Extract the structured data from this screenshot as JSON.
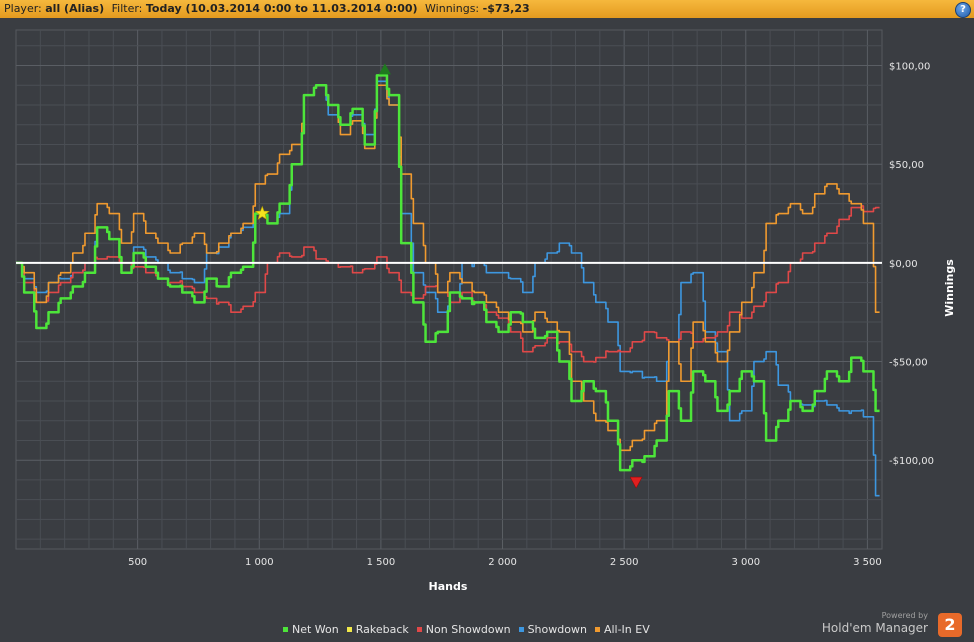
{
  "header": {
    "player_label": "Player:",
    "player_value": "all (Alias)",
    "filter_label": "Filter:",
    "filter_value": "Today (10.03.2014 0:00 to 11.03.2014 0:00)",
    "winnings_label": "Winnings:",
    "winnings_value": "-$73,23",
    "help_glyph": "?"
  },
  "branding": {
    "powered_by": "Powered by",
    "product": "Hold'em Manager",
    "logo_text": "2"
  },
  "chart_data": {
    "type": "line",
    "xlabel": "Hands",
    "ylabel": "Winnings",
    "xlim": [
      0,
      3560
    ],
    "ylim": [
      -145,
      118
    ],
    "x_ticks": [
      500,
      1000,
      1500,
      2000,
      2500,
      3000,
      3500
    ],
    "x_tick_labels": [
      "500",
      "1 000",
      "1 500",
      "2 000",
      "2 500",
      "3 000",
      "3 500"
    ],
    "y_ticks": [
      100,
      50,
      0,
      -50,
      -100
    ],
    "y_tick_labels": [
      "$100,00",
      "$50,00",
      "$0,00",
      "-$50,00",
      "-$100,00"
    ],
    "grid": true,
    "legend_position": "bottom",
    "zero_line_color": "#ffffff",
    "x": [
      0,
      50,
      100,
      150,
      200,
      250,
      300,
      350,
      400,
      450,
      500,
      550,
      600,
      650,
      700,
      750,
      800,
      850,
      900,
      950,
      1000,
      1050,
      1100,
      1150,
      1200,
      1250,
      1300,
      1350,
      1400,
      1450,
      1500,
      1550,
      1600,
      1650,
      1700,
      1750,
      1800,
      1850,
      1900,
      1950,
      2000,
      2050,
      2100,
      2150,
      2200,
      2250,
      2300,
      2350,
      2400,
      2450,
      2500,
      2550,
      2600,
      2650,
      2700,
      2750,
      2800,
      2850,
      2900,
      2950,
      3000,
      3050,
      3100,
      3150,
      3200,
      3250,
      3300,
      3350,
      3400,
      3450,
      3500,
      3550
    ],
    "series": [
      {
        "name": "Net Won",
        "color": "#4de53a",
        "values": [
          0,
          -15,
          -33,
          -25,
          -18,
          -12,
          -5,
          18,
          12,
          -5,
          5,
          -2,
          -8,
          -12,
          -15,
          -20,
          -8,
          -12,
          -5,
          -2,
          25,
          20,
          30,
          50,
          85,
          90,
          80,
          70,
          78,
          60,
          95,
          85,
          10,
          -20,
          -40,
          -35,
          -15,
          -18,
          -20,
          -30,
          -35,
          -25,
          -30,
          -38,
          -35,
          -50,
          -70,
          -60,
          -65,
          -80,
          -105,
          -100,
          -98,
          -90,
          -65,
          -80,
          -55,
          -60,
          -75,
          -65,
          -55,
          -60,
          -90,
          -80,
          -70,
          -75,
          -65,
          -55,
          -60,
          -48,
          -55,
          -75
        ]
      },
      {
        "name": "Rakeback",
        "color": "#f0e84a",
        "values": [
          0,
          0,
          0,
          0,
          0,
          0,
          0,
          0,
          0,
          0,
          0,
          0,
          0,
          0,
          0,
          0,
          0,
          0,
          0,
          0,
          0,
          0,
          0,
          0,
          0,
          0,
          0,
          0,
          0,
          0,
          0,
          0,
          0,
          0,
          0,
          0,
          0,
          0,
          0,
          0,
          0,
          0,
          0,
          0,
          0,
          0,
          0,
          0,
          0,
          0,
          0,
          0,
          0,
          0,
          0,
          0,
          0,
          0,
          0,
          0,
          0,
          0,
          0,
          0,
          0,
          0,
          0,
          0,
          0,
          0,
          0,
          0
        ]
      },
      {
        "name": "Non Showdown",
        "color": "#e04848",
        "values": [
          0,
          -10,
          -20,
          -15,
          -10,
          -5,
          0,
          2,
          3,
          0,
          -2,
          -5,
          -8,
          -10,
          -12,
          -15,
          -18,
          -20,
          -25,
          -22,
          -15,
          0,
          5,
          3,
          8,
          2,
          0,
          -2,
          -5,
          -3,
          3,
          -5,
          -15,
          -18,
          -12,
          -15,
          -20,
          -15,
          -20,
          -25,
          -28,
          -35,
          -45,
          -42,
          -38,
          -40,
          -45,
          -50,
          -48,
          -45,
          -45,
          -40,
          -35,
          -38,
          -40,
          -35,
          -40,
          -38,
          -35,
          -25,
          -28,
          -22,
          -15,
          -10,
          0,
          5,
          10,
          15,
          22,
          28,
          26,
          28
        ]
      },
      {
        "name": "Showdown",
        "color": "#3d97e0",
        "values": [
          0,
          -8,
          -15,
          -10,
          -8,
          -5,
          0,
          18,
          12,
          -5,
          8,
          3,
          0,
          -5,
          -8,
          -10,
          5,
          8,
          15,
          18,
          25,
          20,
          25,
          50,
          85,
          90,
          75,
          70,
          75,
          65,
          92,
          80,
          25,
          -5,
          -15,
          -25,
          -20,
          0,
          0,
          -5,
          -5,
          -8,
          -15,
          0,
          5,
          10,
          5,
          -10,
          -20,
          -30,
          -55,
          -55,
          -58,
          -60,
          -40,
          -10,
          -5,
          -35,
          -45,
          -80,
          -75,
          -50,
          -45,
          -62,
          -70,
          -72,
          -70,
          -72,
          -75,
          -75,
          -78,
          -118
        ]
      },
      {
        "name": "All-In EV",
        "color": "#f09a2f",
        "values": [
          0,
          -5,
          -20,
          -10,
          -5,
          5,
          15,
          30,
          25,
          10,
          25,
          15,
          10,
          5,
          10,
          15,
          5,
          10,
          15,
          20,
          40,
          45,
          55,
          60,
          85,
          90,
          80,
          65,
          72,
          58,
          90,
          80,
          45,
          20,
          0,
          -15,
          -5,
          -10,
          -15,
          -20,
          -25,
          -30,
          -35,
          -25,
          -30,
          -35,
          -60,
          -70,
          -80,
          -85,
          -95,
          -90,
          -85,
          -80,
          -40,
          -60,
          -30,
          -40,
          -50,
          -35,
          -20,
          -5,
          20,
          25,
          30,
          25,
          35,
          40,
          35,
          30,
          20,
          -25
        ]
      }
    ]
  }
}
